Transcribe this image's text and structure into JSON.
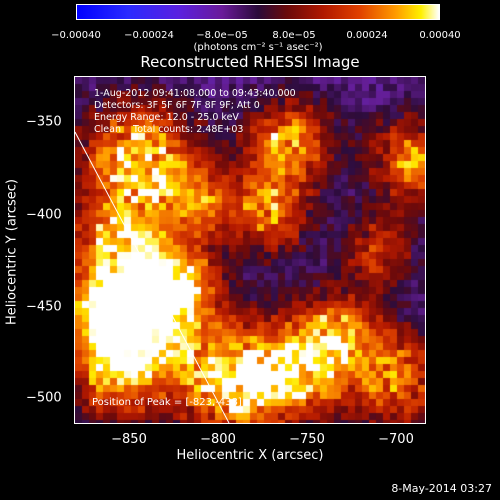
{
  "colorbar": {
    "ticks": [
      "−0.00040",
      "−0.00024",
      "−8.0e−05",
      "8.0e−05",
      "0.00024",
      "0.00040"
    ],
    "units": "(photons cm⁻² s⁻¹ asec⁻²)",
    "range": [
      -0.0004,
      0.0004
    ]
  },
  "title": "Reconstructed RHESSI Image",
  "info": {
    "time": "1-Aug-2012 09:41:08.000 to 09:43:40.000",
    "detectors": "Detectors: 3F 5F 6F 7F 8F 9F; Att 0",
    "energy": "Energy Range: 12.0 - 25.0 keV",
    "clean": "Clean    Total counts: 2.48E+03"
  },
  "peak": "Position of Peak = [-823,-438]",
  "axes": {
    "xlabel": "Heliocentric X (arcsec)",
    "ylabel": "Heliocentric Y (arcsec)",
    "xticks": [
      "−850",
      "−800",
      "−750",
      "−700"
    ],
    "yticks": [
      "−350",
      "−400",
      "−450",
      "−500"
    ],
    "xlim": [
      -877,
      -681
    ],
    "ylim": [
      -521,
      -331
    ]
  },
  "footer_date": "8-May-2014 03:27",
  "colors": {
    "background": "#000000",
    "foreground": "#ffffff"
  }
}
